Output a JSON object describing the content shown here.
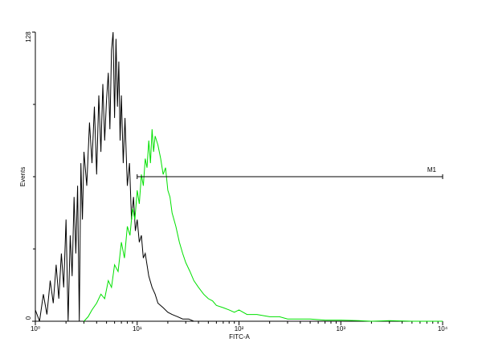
{
  "chart_data": {
    "type": "line",
    "xlabel": "FITC-A",
    "ylabel": "Events",
    "log_x": true,
    "xlim": [
      1,
      10000
    ],
    "ylim": [
      0,
      128
    ],
    "xticks": [
      {
        "value": 1,
        "label": "10⁰"
      },
      {
        "value": 10,
        "label": "10¹"
      },
      {
        "value": 100,
        "label": "10²"
      },
      {
        "value": 1000,
        "label": "10³"
      },
      {
        "value": 10000,
        "label": "10⁴"
      }
    ],
    "yticks": [
      0,
      128
    ],
    "yminor": [
      32,
      64,
      96
    ],
    "series": [
      {
        "color": "#000000",
        "x": [
          1,
          1.1,
          1.2,
          1.3,
          1.4,
          1.5,
          1.6,
          1.7,
          1.8,
          1.9,
          2,
          2.1,
          2.2,
          2.3,
          2.4,
          2.5,
          2.6,
          2.7,
          2.8,
          2.9,
          3,
          3.2,
          3.4,
          3.6,
          3.8,
          4,
          4.2,
          4.4,
          4.6,
          4.8,
          5,
          5.2,
          5.4,
          5.6,
          5.8,
          6,
          6.2,
          6.4,
          6.6,
          6.8,
          7,
          7.3,
          7.6,
          8,
          8.4,
          8.8,
          9.2,
          9.6,
          10,
          10.5,
          11,
          11.5,
          12,
          13,
          14,
          15,
          16,
          18,
          20,
          22,
          25,
          28,
          32,
          36,
          40
        ],
        "values": [
          5,
          0,
          12,
          3,
          18,
          8,
          25,
          10,
          30,
          15,
          45,
          0,
          38,
          20,
          55,
          30,
          60,
          0,
          70,
          45,
          75,
          60,
          88,
          70,
          95,
          65,
          100,
          75,
          105,
          80,
          98,
          110,
          85,
          120,
          128,
          90,
          125,
          95,
          115,
          80,
          100,
          70,
          90,
          60,
          70,
          45,
          55,
          40,
          45,
          35,
          38,
          28,
          30,
          20,
          15,
          12,
          8,
          6,
          4,
          3,
          2,
          1,
          1,
          0,
          0
        ]
      },
      {
        "color": "#00e000",
        "x": [
          3,
          3.3,
          3.6,
          4,
          4.4,
          4.8,
          5.2,
          5.6,
          6,
          6.5,
          7,
          7.5,
          8,
          8.5,
          9,
          9.5,
          10,
          10.5,
          11,
          11.5,
          12,
          12.5,
          13,
          13.5,
          14,
          14.5,
          15,
          16,
          17,
          18,
          19,
          20,
          21,
          22,
          24,
          26,
          28,
          30,
          33,
          36,
          40,
          45,
          50,
          55,
          60,
          70,
          80,
          90,
          100,
          120,
          150,
          200,
          250,
          300,
          400,
          500,
          700,
          1000,
          1500,
          2000,
          3000,
          5000,
          10000
        ],
        "values": [
          0,
          2,
          5,
          8,
          12,
          10,
          18,
          15,
          25,
          22,
          35,
          28,
          42,
          38,
          50,
          45,
          58,
          52,
          65,
          60,
          72,
          68,
          80,
          70,
          85,
          75,
          82,
          78,
          72,
          65,
          68,
          58,
          55,
          48,
          42,
          35,
          30,
          26,
          22,
          18,
          15,
          12,
          10,
          9,
          7,
          6,
          5,
          4,
          5,
          3,
          3,
          2,
          2,
          1,
          1,
          1,
          0.5,
          0.5,
          0.3,
          0,
          0.3,
          0,
          0
        ]
      }
    ],
    "marker": {
      "label": "M1",
      "x": [
        10,
        10000
      ],
      "y": 64
    }
  }
}
